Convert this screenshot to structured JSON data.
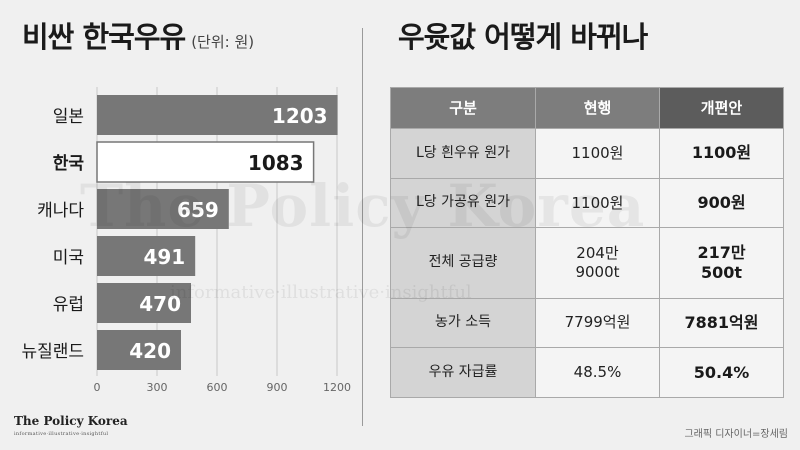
{
  "left": {
    "title": "비싼 한국우유",
    "unit_label": "(단위: 원)"
  },
  "right": {
    "title": "우윳값 어떻게 바뀌나",
    "table": {
      "headers": [
        "구분",
        "현행",
        "개편안"
      ],
      "rows": [
        {
          "label": "L당 흰우유 원가",
          "current": [
            "1100원"
          ],
          "proposed": [
            "1100원"
          ]
        },
        {
          "label": "L당 가공유 원가",
          "current": [
            "1100원"
          ],
          "proposed": [
            "900원"
          ]
        },
        {
          "label": "전체 공급량",
          "current": [
            "204만",
            "9000t"
          ],
          "proposed": [
            "217만",
            "500t"
          ]
        },
        {
          "label": "농가 소득",
          "current": [
            "7799억원"
          ],
          "proposed": [
            "7881억원"
          ]
        },
        {
          "label": "우유 자급률",
          "current": [
            "48.5%"
          ],
          "proposed": [
            "50.4%"
          ]
        }
      ]
    }
  },
  "watermark": {
    "main": "The Policy Korea",
    "sub": "informative·illustrative·insightful"
  },
  "footer": {
    "logo": "The Policy Korea",
    "logo_tagline": "informative·illustrative·insightful",
    "credit": "그래픽 디자이너=장세림"
  },
  "chart_data": {
    "type": "bar",
    "orientation": "horizontal",
    "title": "비싼 한국우유",
    "unit": "(단위: 원)",
    "categories": [
      "일본",
      "한국",
      "캐나다",
      "미국",
      "유럽",
      "뉴질랜드"
    ],
    "values": [
      1203,
      1083,
      659,
      491,
      470,
      420
    ],
    "highlight": "한국",
    "xlim": [
      0,
      1200
    ],
    "xticks": [
      0,
      300,
      600,
      900,
      1200
    ],
    "grid": true,
    "colors": {
      "bar": "#777777",
      "highlight_fill": "#ffffff",
      "highlight_border": "#777777"
    }
  }
}
